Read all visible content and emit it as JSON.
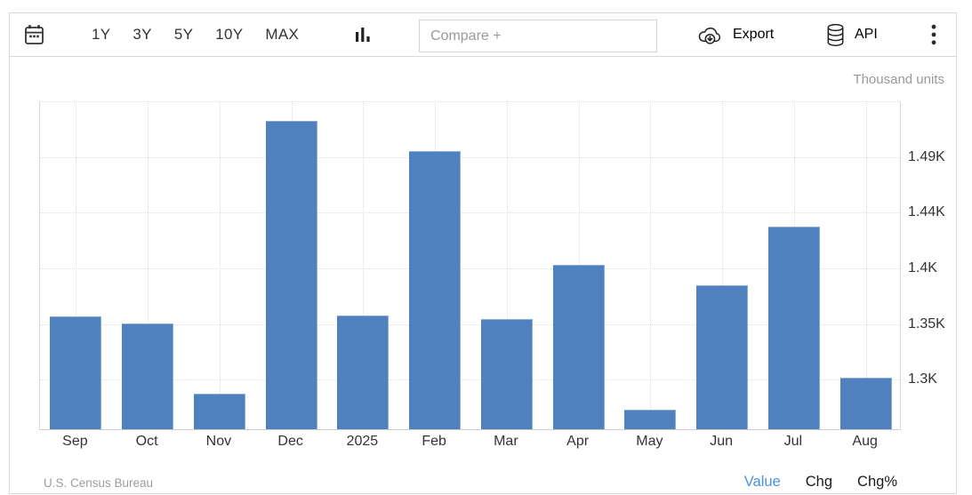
{
  "toolbar": {
    "calendar_icon": "calendar-icon",
    "ranges": [
      "1Y",
      "3Y",
      "5Y",
      "10Y",
      "MAX"
    ],
    "chart_type_icon": "column-chart-icon",
    "compare_placeholder": "Compare +",
    "export_label": "Export",
    "export_icon": "cloud-download-icon",
    "api_label": "API",
    "api_icon": "database-icon",
    "menu_icon": "kebab-menu-icon"
  },
  "chart": {
    "unit_label": "Thousand units",
    "source": "U.S. Census Bureau",
    "legend_tabs": [
      {
        "label": "Value",
        "active": true
      },
      {
        "label": "Chg",
        "active": false
      },
      {
        "label": "Chg%",
        "active": false
      }
    ],
    "colors": {
      "bar": "#4e81bd",
      "active_tab": "#4a90e2",
      "axis_text": "#333333",
      "muted_text": "#999999"
    }
  },
  "chart_data": {
    "type": "bar",
    "title": "",
    "categories": [
      "Sep",
      "Oct",
      "Nov",
      "Dec",
      "2025",
      "Feb",
      "Mar",
      "Apr",
      "May",
      "Jun",
      "Jul",
      "Aug"
    ],
    "values": [
      1353,
      1347,
      1287,
      1520,
      1354,
      1494,
      1351,
      1397,
      1274,
      1380,
      1430,
      1301
    ],
    "xlabel": "",
    "ylabel": "Thousand units",
    "ylim": [
      1257,
      1537.5
    ],
    "yticks": [
      {
        "value": 1300,
        "label": "1.3K"
      },
      {
        "value": 1347.5,
        "label": "1.35K"
      },
      {
        "value": 1395,
        "label": "1.4K"
      },
      {
        "value": 1442.5,
        "label": "1.44K"
      },
      {
        "value": 1490,
        "label": "1.49K"
      },
      {
        "value": 1537.5,
        "label": ""
      }
    ],
    "grid": "dotted horizontal at yticks, dotted vertical at category centers",
    "legend_position": "bottom-right",
    "bar_color": "#4e81bd",
    "source": "U.S. Census Bureau"
  }
}
